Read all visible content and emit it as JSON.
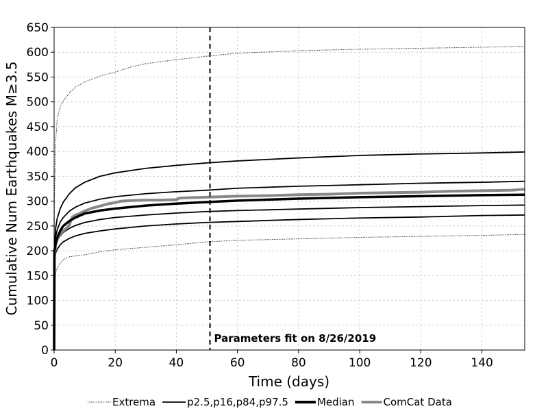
{
  "chart_data": {
    "type": "line",
    "title": "",
    "xlabel": "Time (days)",
    "ylabel": "Cumulative Num Earthquakes M≥3.5",
    "xlim": [
      0,
      154
    ],
    "ylim": [
      0,
      650
    ],
    "xticks": [
      0,
      20,
      40,
      60,
      80,
      100,
      120,
      140
    ],
    "yticks": [
      0,
      50,
      100,
      150,
      200,
      250,
      300,
      350,
      400,
      450,
      500,
      550,
      600,
      650
    ],
    "grid": true,
    "annotation": {
      "x": 51,
      "label": "Parameters fit on 8/26/2019"
    },
    "legend": {
      "placement": "below",
      "entries": [
        {
          "label": "Extrema",
          "style": "dotted",
          "color": "#000000"
        },
        {
          "label": "p2.5,p16,p84,p97.5",
          "style": "thin",
          "color": "#000000"
        },
        {
          "label": "Median",
          "style": "thick",
          "color": "#000000"
        },
        {
          "label": "ComCat Data",
          "style": "thick",
          "color": "#888888"
        }
      ]
    },
    "series": [
      {
        "name": "Extrema",
        "style": "dotted",
        "color": "#000000",
        "points": [
          [
            0,
            0
          ],
          [
            0.1,
            300
          ],
          [
            0.5,
            420
          ],
          [
            1,
            465
          ],
          [
            2,
            490
          ],
          [
            3,
            502
          ],
          [
            5,
            518
          ],
          [
            7,
            530
          ],
          [
            10,
            540
          ],
          [
            15,
            552
          ],
          [
            20,
            560
          ],
          [
            25,
            570
          ],
          [
            30,
            577
          ],
          [
            40,
            585
          ],
          [
            50,
            592
          ],
          [
            60,
            598
          ],
          [
            80,
            603
          ],
          [
            100,
            606
          ],
          [
            120,
            608
          ],
          [
            140,
            610
          ],
          [
            154,
            612
          ]
        ]
      },
      {
        "name": "Extrema",
        "style": "dotted",
        "color": "#000000",
        "points": [
          [
            0,
            0
          ],
          [
            0.1,
            120
          ],
          [
            0.5,
            155
          ],
          [
            1,
            165
          ],
          [
            2,
            175
          ],
          [
            3,
            182
          ],
          [
            5,
            188
          ],
          [
            10,
            192
          ],
          [
            15,
            198
          ],
          [
            20,
            202
          ],
          [
            30,
            207
          ],
          [
            40,
            212
          ],
          [
            50,
            218
          ],
          [
            60,
            221
          ],
          [
            80,
            224
          ],
          [
            100,
            227
          ],
          [
            120,
            229
          ],
          [
            140,
            231
          ],
          [
            154,
            233
          ]
        ]
      },
      {
        "name": "p97.5",
        "style": "thin",
        "color": "#000000",
        "points": [
          [
            0,
            0
          ],
          [
            0.1,
            210
          ],
          [
            0.5,
            245
          ],
          [
            1,
            265
          ],
          [
            2,
            285
          ],
          [
            3,
            298
          ],
          [
            5,
            315
          ],
          [
            7,
            327
          ],
          [
            10,
            338
          ],
          [
            15,
            350
          ],
          [
            20,
            357
          ],
          [
            30,
            366
          ],
          [
            40,
            372
          ],
          [
            50,
            377
          ],
          [
            60,
            381
          ],
          [
            80,
            387
          ],
          [
            100,
            392
          ],
          [
            120,
            395
          ],
          [
            140,
            397
          ],
          [
            154,
            399
          ]
        ]
      },
      {
        "name": "p84",
        "style": "thin",
        "color": "#000000",
        "points": [
          [
            0,
            0
          ],
          [
            0.1,
            205
          ],
          [
            0.5,
            228
          ],
          [
            1,
            242
          ],
          [
            2,
            258
          ],
          [
            3,
            267
          ],
          [
            5,
            280
          ],
          [
            7,
            288
          ],
          [
            10,
            296
          ],
          [
            15,
            304
          ],
          [
            20,
            309
          ],
          [
            30,
            315
          ],
          [
            40,
            319
          ],
          [
            50,
            322
          ],
          [
            60,
            326
          ],
          [
            80,
            330
          ],
          [
            100,
            333
          ],
          [
            120,
            336
          ],
          [
            140,
            338
          ],
          [
            154,
            340
          ]
        ]
      },
      {
        "name": "Median",
        "style": "thick",
        "color": "#000000",
        "points": [
          [
            0,
            0
          ],
          [
            0.1,
            200
          ],
          [
            0.5,
            215
          ],
          [
            1,
            226
          ],
          [
            2,
            240
          ],
          [
            3,
            250
          ],
          [
            5,
            260
          ],
          [
            7,
            267
          ],
          [
            10,
            275
          ],
          [
            15,
            281
          ],
          [
            20,
            285
          ],
          [
            30,
            291
          ],
          [
            40,
            295
          ],
          [
            50,
            298
          ],
          [
            60,
            301
          ],
          [
            80,
            305
          ],
          [
            100,
            308
          ],
          [
            120,
            310
          ],
          [
            140,
            312
          ],
          [
            154,
            313
          ]
        ]
      },
      {
        "name": "p16",
        "style": "thin",
        "color": "#000000",
        "points": [
          [
            0,
            0
          ],
          [
            0.1,
            195
          ],
          [
            0.5,
            210
          ],
          [
            1,
            220
          ],
          [
            2,
            230
          ],
          [
            3,
            237
          ],
          [
            5,
            245
          ],
          [
            7,
            251
          ],
          [
            10,
            257
          ],
          [
            15,
            263
          ],
          [
            20,
            267
          ],
          [
            30,
            272
          ],
          [
            40,
            276
          ],
          [
            50,
            279
          ],
          [
            60,
            281
          ],
          [
            80,
            284
          ],
          [
            100,
            287
          ],
          [
            120,
            289
          ],
          [
            140,
            291
          ],
          [
            154,
            292
          ]
        ]
      },
      {
        "name": "p2.5",
        "style": "thin",
        "color": "#000000",
        "points": [
          [
            0,
            0
          ],
          [
            0.1,
            180
          ],
          [
            0.5,
            195
          ],
          [
            1,
            203
          ],
          [
            2,
            212
          ],
          [
            3,
            218
          ],
          [
            5,
            225
          ],
          [
            7,
            230
          ],
          [
            10,
            235
          ],
          [
            15,
            240
          ],
          [
            20,
            244
          ],
          [
            30,
            250
          ],
          [
            40,
            254
          ],
          [
            50,
            257
          ],
          [
            60,
            259
          ],
          [
            80,
            263
          ],
          [
            100,
            266
          ],
          [
            120,
            268
          ],
          [
            140,
            271
          ],
          [
            154,
            272
          ]
        ]
      },
      {
        "name": "ComCat Data",
        "style": "thick",
        "color": "#888888",
        "points": [
          [
            0,
            0
          ],
          [
            0.1,
            185
          ],
          [
            0.5,
            212
          ],
          [
            1,
            222
          ],
          [
            2,
            234
          ],
          [
            3,
            240
          ],
          [
            4,
            245
          ],
          [
            5,
            252
          ],
          [
            5.5,
            262
          ],
          [
            6,
            268
          ],
          [
            7,
            272
          ],
          [
            8,
            274
          ],
          [
            10,
            280
          ],
          [
            12,
            285
          ],
          [
            15,
            290
          ],
          [
            18,
            295
          ],
          [
            20,
            297
          ],
          [
            22,
            300
          ],
          [
            25,
            301
          ],
          [
            30,
            302
          ],
          [
            35,
            302
          ],
          [
            40,
            303
          ],
          [
            41,
            306
          ],
          [
            45,
            307
          ],
          [
            50,
            308
          ],
          [
            55,
            309
          ],
          [
            60,
            310
          ],
          [
            70,
            311
          ],
          [
            80,
            313
          ],
          [
            90,
            314
          ],
          [
            100,
            316
          ],
          [
            110,
            317
          ],
          [
            120,
            318
          ],
          [
            130,
            320
          ],
          [
            140,
            321
          ],
          [
            150,
            322
          ],
          [
            154,
            324
          ]
        ]
      }
    ]
  }
}
